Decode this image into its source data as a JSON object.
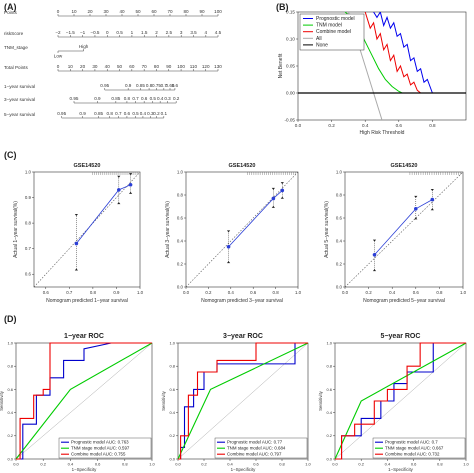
{
  "panel_labels": [
    "(A)",
    "(B)",
    "(C)",
    "(D)"
  ],
  "nomogram": {
    "rows": [
      {
        "label": "Points",
        "type": "scale",
        "ticks": [
          {
            "v": 0,
            "t": "0"
          },
          {
            "v": 10,
            "t": "10"
          },
          {
            "v": 20,
            "t": "20"
          },
          {
            "v": 30,
            "t": "30"
          },
          {
            "v": 40,
            "t": "40"
          },
          {
            "v": 50,
            "t": "50"
          },
          {
            "v": 60,
            "t": "60"
          },
          {
            "v": 70,
            "t": "70"
          },
          {
            "v": 80,
            "t": "80"
          },
          {
            "v": 90,
            "t": "90"
          },
          {
            "v": 100,
            "t": "100"
          }
        ],
        "range": [
          0,
          100
        ]
      },
      {
        "label": "riskScore",
        "type": "scale",
        "ticks": [
          {
            "v": 0,
            "t": "−2"
          },
          {
            "v": 7.7,
            "t": "−1.5"
          },
          {
            "v": 15.4,
            "t": "−1"
          },
          {
            "v": 23.1,
            "t": "−0.5"
          },
          {
            "v": 30.8,
            "t": "0"
          },
          {
            "v": 38.5,
            "t": "0.5"
          },
          {
            "v": 46.2,
            "t": "1"
          },
          {
            "v": 53.9,
            "t": "1.5"
          },
          {
            "v": 61.6,
            "t": "2"
          },
          {
            "v": 69.3,
            "t": "2.5"
          },
          {
            "v": 77,
            "t": "3"
          },
          {
            "v": 84.7,
            "t": "3.5"
          },
          {
            "v": 92.4,
            "t": "4"
          },
          {
            "v": 100,
            "t": "4.5"
          }
        ],
        "range": [
          0,
          100
        ]
      },
      {
        "label": "TNM_stage",
        "type": "binary",
        "ticks": [
          {
            "v": 0,
            "t": "Low",
            "pos": "below"
          },
          {
            "v": 16,
            "t": "High",
            "pos": "above"
          }
        ],
        "range": [
          0,
          16
        ]
      },
      {
        "label": "Total Points",
        "type": "scale",
        "ticks": [
          {
            "v": 0,
            "t": "0"
          },
          {
            "v": 10,
            "t": "10"
          },
          {
            "v": 20,
            "t": "20"
          },
          {
            "v": 30,
            "t": "30"
          },
          {
            "v": 40,
            "t": "40"
          },
          {
            "v": 50,
            "t": "50"
          },
          {
            "v": 60,
            "t": "60"
          },
          {
            "v": 70,
            "t": "70"
          },
          {
            "v": 80,
            "t": "80"
          },
          {
            "v": 90,
            "t": "90"
          },
          {
            "v": 100,
            "t": "100"
          },
          {
            "v": 110,
            "t": "110"
          },
          {
            "v": 120,
            "t": "120"
          },
          {
            "v": 130,
            "t": "130"
          }
        ],
        "range": [
          0,
          130
        ],
        "scale_max": 130
      },
      {
        "label": "1−year survival",
        "type": "scale",
        "ticks": [
          {
            "v": 38,
            "t": "0.95"
          },
          {
            "v": 57,
            "t": "0.9"
          },
          {
            "v": 67,
            "t": "0.85"
          },
          {
            "v": 74,
            "t": "0.8"
          },
          {
            "v": 80,
            "t": "0.75"
          },
          {
            "v": 86,
            "t": "0.7"
          },
          {
            "v": 91,
            "t": "0.65"
          },
          {
            "v": 95,
            "t": "0.6"
          }
        ],
        "range": [
          38,
          95
        ],
        "scale_max": 130
      },
      {
        "label": "3−year survival",
        "type": "scale",
        "ticks": [
          {
            "v": 13,
            "t": "0.95"
          },
          {
            "v": 32,
            "t": "0.9"
          },
          {
            "v": 47,
            "t": "0.85"
          },
          {
            "v": 56,
            "t": "0.8"
          },
          {
            "v": 63,
            "t": "0.7"
          },
          {
            "v": 70,
            "t": "0.6"
          },
          {
            "v": 77,
            "t": "0.5"
          },
          {
            "v": 83,
            "t": "0.4"
          },
          {
            "v": 89,
            "t": "0.3"
          },
          {
            "v": 96,
            "t": "0.2"
          }
        ],
        "range": [
          13,
          96
        ],
        "scale_max": 130
      },
      {
        "label": "5−year survival",
        "type": "scale",
        "ticks": [
          {
            "v": 3,
            "t": "0.95"
          },
          {
            "v": 20,
            "t": "0.9"
          },
          {
            "v": 33,
            "t": "0.85"
          },
          {
            "v": 42,
            "t": "0.8"
          },
          {
            "v": 49,
            "t": "0.7"
          },
          {
            "v": 56,
            "t": "0.6"
          },
          {
            "v": 63,
            "t": "0.5"
          },
          {
            "v": 69,
            "t": "0.4"
          },
          {
            "v": 75,
            "t": "0.3"
          },
          {
            "v": 80,
            "t": "0.2"
          },
          {
            "v": 86,
            "t": "0.1"
          }
        ],
        "range": [
          3,
          86
        ],
        "scale_max": 130
      }
    ]
  },
  "chart_data": [
    {
      "type": "line",
      "panel": "B",
      "xlabel": "High Risk Threshold",
      "ylabel": "Net Benefit",
      "xlim": [
        0,
        1
      ],
      "ylim": [
        -0.05,
        0.15
      ],
      "xticks": [
        0,
        0.2,
        0.4,
        0.6,
        0.8
      ],
      "yticks": [
        -0.05,
        0.0,
        0.05,
        0.1,
        0.15
      ],
      "legend": "top-left",
      "series": [
        {
          "name": "Prognostic model",
          "color": "#0000ee",
          "x": [
            0.45,
            0.47,
            0.49,
            0.51,
            0.53,
            0.55,
            0.57,
            0.59,
            0.61,
            0.63,
            0.65,
            0.67,
            0.69,
            0.71,
            0.73,
            0.75,
            0.77,
            0.8
          ],
          "y": [
            0.15,
            0.14,
            0.15,
            0.125,
            0.14,
            0.12,
            0.13,
            0.105,
            0.11,
            0.085,
            0.09,
            0.06,
            0.065,
            0.04,
            0.045,
            0.02,
            0.025,
            0.0
          ]
        },
        {
          "name": "TNM model",
          "color": "#00cc00",
          "x": [
            0.28,
            0.32,
            0.36,
            0.4,
            0.44,
            0.48,
            0.52,
            0.56,
            0.6,
            0.62
          ],
          "y": [
            0.15,
            0.14,
            0.12,
            0.095,
            0.07,
            0.045,
            0.025,
            0.012,
            0.003,
            0.0
          ]
        },
        {
          "name": "Combine model",
          "color": "#ee0000",
          "x": [
            0.4,
            0.43,
            0.45,
            0.47,
            0.49,
            0.51,
            0.53,
            0.55,
            0.57,
            0.59,
            0.61,
            0.63,
            0.65,
            0.67,
            0.69,
            0.71,
            0.73
          ],
          "y": [
            0.15,
            0.12,
            0.13,
            0.1,
            0.11,
            0.08,
            0.09,
            0.06,
            0.07,
            0.04,
            0.05,
            0.03,
            0.035,
            0.015,
            0.02,
            0.005,
            0.0
          ]
        },
        {
          "name": "All",
          "color": "#aaaaaa",
          "x": [
            0.3,
            0.35,
            0.4,
            0.45,
            0.5
          ],
          "y": [
            0.15,
            0.1,
            0.05,
            0.0,
            -0.05
          ]
        },
        {
          "name": "None",
          "color": "#000000",
          "x": [
            0,
            1
          ],
          "y": [
            0,
            0
          ]
        }
      ]
    },
    {
      "type": "scatter",
      "panel": "C1",
      "title": "GSE14520",
      "xlabel": "Nomogram predicted 1−year survival",
      "ylabel": "Actual 1−year survival(%)",
      "xlim": [
        0.55,
        1.0
      ],
      "ylim": [
        0.55,
        1.0
      ],
      "xticks": [
        0.6,
        0.7,
        0.8,
        0.9,
        1.0
      ],
      "yticks": [
        0.6,
        0.7,
        0.8,
        0.9,
        1.0
      ],
      "points": [
        {
          "x": 0.73,
          "y": 0.72,
          "lo": 0.62,
          "hi": 0.83
        },
        {
          "x": 0.91,
          "y": 0.93,
          "lo": 0.88,
          "hi": 0.98
        },
        {
          "x": 0.96,
          "y": 0.95,
          "lo": 0.92,
          "hi": 0.99
        }
      ]
    },
    {
      "type": "scatter",
      "panel": "C2",
      "title": "GSE14520",
      "xlabel": "Nomogram predicted 3−year survival",
      "ylabel": "Actual 3−year survival(%)",
      "xlim": [
        0.0,
        1.0
      ],
      "ylim": [
        0.0,
        1.0
      ],
      "xticks": [
        0.0,
        0.2,
        0.4,
        0.6,
        0.8,
        1.0
      ],
      "yticks": [
        0.0,
        0.2,
        0.4,
        0.6,
        0.8,
        1.0
      ],
      "points": [
        {
          "x": 0.38,
          "y": 0.35,
          "lo": 0.22,
          "hi": 0.48
        },
        {
          "x": 0.78,
          "y": 0.77,
          "lo": 0.7,
          "hi": 0.85
        },
        {
          "x": 0.86,
          "y": 0.84,
          "lo": 0.78,
          "hi": 0.9
        }
      ]
    },
    {
      "type": "scatter",
      "panel": "C3",
      "title": "GSE14520",
      "xlabel": "Nomogram predicted 5−year survival",
      "ylabel": "Actual 5−year survival(%)",
      "xlim": [
        0.0,
        1.0
      ],
      "ylim": [
        0.0,
        1.0
      ],
      "xticks": [
        0.0,
        0.2,
        0.4,
        0.6,
        0.8,
        1.0
      ],
      "yticks": [
        0.0,
        0.2,
        0.4,
        0.6,
        0.8,
        1.0
      ],
      "points": [
        {
          "x": 0.25,
          "y": 0.28,
          "lo": 0.15,
          "hi": 0.4
        },
        {
          "x": 0.6,
          "y": 0.68,
          "lo": 0.6,
          "hi": 0.78
        },
        {
          "x": 0.74,
          "y": 0.76,
          "lo": 0.68,
          "hi": 0.84
        }
      ]
    },
    {
      "type": "line",
      "panel": "D1",
      "title": "1−year ROC",
      "xlabel": "1−Specificity",
      "ylabel": "Sensitivity",
      "xlim": [
        0,
        1
      ],
      "ylim": [
        0,
        1
      ],
      "xticks": [
        0.0,
        0.2,
        0.4,
        0.6,
        0.8,
        1.0
      ],
      "yticks": [
        0.0,
        0.2,
        0.4,
        0.6,
        0.8,
        1.0
      ],
      "legend": "bottom-right",
      "series": [
        {
          "name": "Prognostic model AUC: 0.763",
          "color": "#0000cc",
          "x": [
            0,
            0.05,
            0.05,
            0.15,
            0.15,
            0.25,
            0.25,
            0.35,
            0.35,
            0.5,
            0.5,
            0.7,
            1.0
          ],
          "y": [
            0,
            0,
            0.3,
            0.3,
            0.55,
            0.55,
            0.7,
            0.7,
            0.85,
            0.85,
            0.95,
            1.0,
            1.0
          ]
        },
        {
          "name": "TNM stage model AUC: 0.597",
          "color": "#00cc00",
          "x": [
            0,
            0.4,
            1.0
          ],
          "y": [
            0,
            0.6,
            1.0
          ]
        },
        {
          "name": "Combine model AUC: 0.755",
          "color": "#ee0000",
          "x": [
            0,
            0.03,
            0.03,
            0.13,
            0.13,
            0.2,
            0.2,
            0.25,
            0.25,
            0.55,
            0.55,
            1.0
          ],
          "y": [
            0,
            0,
            0.35,
            0.35,
            0.55,
            0.55,
            0.6,
            0.6,
            1.0,
            1.0,
            1.0,
            1.0
          ]
        }
      ]
    },
    {
      "type": "line",
      "panel": "D2",
      "title": "3−year ROC",
      "xlabel": "1−Specificity",
      "ylabel": "Sensitivity",
      "xlim": [
        0,
        1
      ],
      "ylim": [
        0,
        1
      ],
      "xticks": [
        0.0,
        0.2,
        0.4,
        0.6,
        0.8,
        1.0
      ],
      "yticks": [
        0.0,
        0.2,
        0.4,
        0.6,
        0.8,
        1.0
      ],
      "legend": "bottom-right",
      "series": [
        {
          "name": "Prognostic model AUC: 0.77",
          "color": "#0000cc",
          "x": [
            0,
            0.02,
            0.02,
            0.05,
            0.05,
            0.12,
            0.12,
            0.2,
            0.2,
            0.3,
            0.3,
            0.9,
            0.9,
            1.0
          ],
          "y": [
            0,
            0,
            0.1,
            0.1,
            0.45,
            0.45,
            0.6,
            0.6,
            0.75,
            0.75,
            0.82,
            0.82,
            1.0,
            1.0
          ]
        },
        {
          "name": "TNM stage model AUC: 0.684",
          "color": "#00cc00",
          "x": [
            0,
            0.25,
            1.0
          ],
          "y": [
            0,
            0.6,
            1.0
          ]
        },
        {
          "name": "Combine model AUC: 0.797",
          "color": "#ee0000",
          "x": [
            0,
            0.02,
            0.02,
            0.08,
            0.08,
            0.15,
            0.15,
            0.3,
            0.3,
            0.6,
            0.6,
            1.0
          ],
          "y": [
            0,
            0,
            0.2,
            0.2,
            0.55,
            0.55,
            0.75,
            0.75,
            0.85,
            0.85,
            1.0,
            1.0
          ]
        }
      ]
    },
    {
      "type": "line",
      "panel": "D3",
      "title": "5−year ROC",
      "xlabel": "1−Specificity",
      "ylabel": "Sensitivity",
      "xlim": [
        0,
        1
      ],
      "ylim": [
        0,
        1
      ],
      "xticks": [
        0.0,
        0.2,
        0.4,
        0.6,
        0.8,
        1.0
      ],
      "yticks": [
        0.0,
        0.2,
        0.4,
        0.6,
        0.8,
        1.0
      ],
      "legend": "bottom-right",
      "series": [
        {
          "name": "Prognostic model AUC: 0.7",
          "color": "#0000cc",
          "x": [
            0,
            0.05,
            0.05,
            0.2,
            0.2,
            0.35,
            0.35,
            0.45,
            0.45,
            0.55,
            0.55,
            0.75,
            0.75,
            1.0
          ],
          "y": [
            0,
            0,
            0.2,
            0.2,
            0.35,
            0.35,
            0.5,
            0.5,
            0.65,
            0.65,
            0.75,
            0.75,
            1.0,
            1.0
          ]
        },
        {
          "name": "TNM stage model AUC: 0.667",
          "color": "#00cc00",
          "x": [
            0,
            0.2,
            1.0
          ],
          "y": [
            0,
            0.5,
            1.0
          ]
        },
        {
          "name": "Combine model AUC: 0.732",
          "color": "#ee0000",
          "x": [
            0,
            0.05,
            0.05,
            0.15,
            0.15,
            0.3,
            0.3,
            0.4,
            0.4,
            0.55,
            0.55,
            0.65,
            0.65,
            1.0
          ],
          "y": [
            0,
            0,
            0.2,
            0.2,
            0.3,
            0.3,
            0.5,
            0.5,
            0.6,
            0.6,
            0.8,
            0.8,
            1.0,
            1.0
          ]
        }
      ]
    }
  ]
}
